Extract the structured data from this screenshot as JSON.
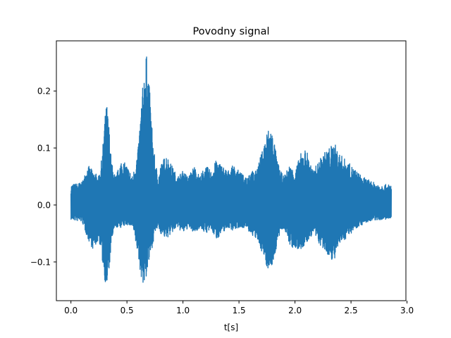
{
  "chart_data": {
    "type": "line",
    "title": "Povodny signal",
    "xlabel": "t[s]",
    "ylabel": "",
    "xlim": [
      -0.13,
      2.99
    ],
    "ylim": [
      -0.168,
      0.288
    ],
    "xticks": [
      0.0,
      0.5,
      1.0,
      1.5,
      2.0,
      2.5,
      3.0
    ],
    "xtick_labels": [
      "0.0",
      "0.5",
      "1.0",
      "1.5",
      "2.0",
      "2.5",
      "3.0"
    ],
    "yticks": [
      -0.1,
      0.0,
      0.1,
      0.2
    ],
    "ytick_labels": [
      "−0.1",
      "0.0",
      "0.1",
      "0.2"
    ],
    "grid": false,
    "series": [
      {
        "color": "#1f77b4",
        "envelope_t": [
          0.0,
          0.1,
          0.15,
          0.2,
          0.25,
          0.28,
          0.3,
          0.32,
          0.34,
          0.36,
          0.38,
          0.4,
          0.45,
          0.5,
          0.55,
          0.6,
          0.62,
          0.65,
          0.67,
          0.69,
          0.71,
          0.73,
          0.75,
          0.78,
          0.8,
          0.85,
          0.9,
          0.95,
          1.0,
          1.05,
          1.1,
          1.15,
          1.2,
          1.25,
          1.3,
          1.35,
          1.4,
          1.45,
          1.5,
          1.55,
          1.6,
          1.65,
          1.7,
          1.75,
          1.78,
          1.81,
          1.84,
          1.87,
          1.9,
          1.95,
          2.0,
          2.05,
          2.1,
          2.13,
          2.16,
          2.19,
          2.22,
          2.25,
          2.3,
          2.35,
          2.4,
          2.45,
          2.5,
          2.55,
          2.6,
          2.65,
          2.7,
          2.75,
          2.8,
          2.86
        ],
        "envelope_max": [
          0.036,
          0.04,
          0.07,
          0.06,
          0.05,
          0.09,
          0.15,
          0.18,
          0.14,
          0.08,
          0.06,
          0.05,
          0.08,
          0.07,
          0.05,
          0.1,
          0.16,
          0.23,
          0.27,
          0.24,
          0.18,
          0.12,
          0.08,
          0.05,
          0.07,
          0.09,
          0.07,
          0.05,
          0.06,
          0.05,
          0.07,
          0.05,
          0.07,
          0.06,
          0.08,
          0.07,
          0.06,
          0.07,
          0.06,
          0.05,
          0.06,
          0.06,
          0.09,
          0.13,
          0.14,
          0.12,
          0.08,
          0.06,
          0.05,
          0.07,
          0.06,
          0.09,
          0.1,
          0.08,
          0.06,
          0.07,
          0.08,
          0.09,
          0.1,
          0.11,
          0.09,
          0.08,
          0.07,
          0.06,
          0.05,
          0.045,
          0.04,
          0.037,
          0.036,
          0.036
        ],
        "envelope_min": [
          -0.026,
          -0.03,
          -0.06,
          -0.08,
          -0.06,
          -0.1,
          -0.13,
          -0.148,
          -0.12,
          -0.07,
          -0.05,
          -0.04,
          -0.04,
          -0.035,
          -0.04,
          -0.09,
          -0.12,
          -0.145,
          -0.13,
          -0.11,
          -0.09,
          -0.07,
          -0.05,
          -0.04,
          -0.05,
          -0.06,
          -0.05,
          -0.04,
          -0.05,
          -0.04,
          -0.05,
          -0.04,
          -0.05,
          -0.045,
          -0.06,
          -0.05,
          -0.04,
          -0.045,
          -0.04,
          -0.04,
          -0.05,
          -0.06,
          -0.08,
          -0.11,
          -0.115,
          -0.1,
          -0.07,
          -0.05,
          -0.04,
          -0.07,
          -0.08,
          -0.08,
          -0.07,
          -0.06,
          -0.05,
          -0.06,
          -0.07,
          -0.08,
          -0.09,
          -0.1,
          -0.07,
          -0.06,
          -0.05,
          -0.04,
          -0.035,
          -0.03,
          -0.028,
          -0.026,
          -0.026,
          -0.026
        ]
      }
    ]
  }
}
